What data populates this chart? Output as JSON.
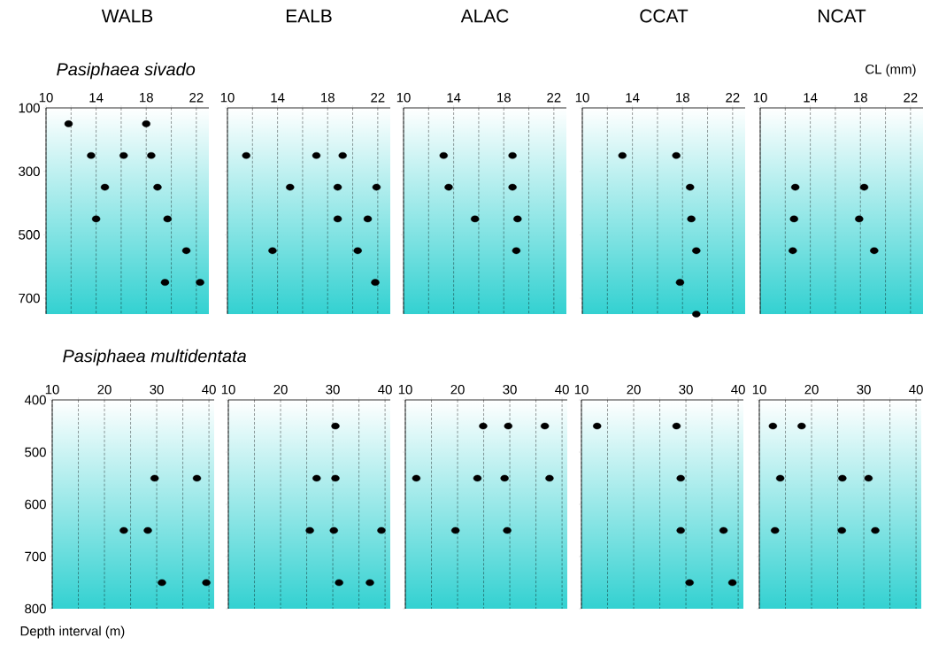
{
  "chart_data": [
    {
      "type": "scatter",
      "title": "WALB",
      "subtitle": "Pasiphaea sivado",
      "color": "#000000",
      "marker": "circle",
      "grid": "x",
      "xlim": [
        10,
        23
      ],
      "ylim": [
        750,
        100
      ],
      "xticks": [
        10,
        {
          "value": 12,
          "label": null
        },
        14,
        {
          "value": 16,
          "label": null
        },
        18,
        {
          "value": 20,
          "label": null
        },
        22
      ],
      "yticks": [
        100,
        300,
        500,
        700
      ],
      "x": [
        11.8,
        18.0,
        13.6,
        16.2,
        18.4,
        14.7,
        18.9,
        14.0,
        19.7,
        21.2,
        19.5,
        22.3
      ],
      "values": [
        150,
        150,
        250,
        250,
        250,
        350,
        350,
        450,
        450,
        550,
        650,
        650
      ]
    },
    {
      "type": "scatter",
      "title": "EALB",
      "color": "#000000",
      "marker": "circle",
      "grid": "x",
      "tick_labels": "x",
      "xlim": [
        10,
        23
      ],
      "ylim": [
        750,
        100
      ],
      "xticks": [
        10,
        {
          "value": 12,
          "label": null
        },
        14,
        {
          "value": 16,
          "label": null
        },
        18,
        {
          "value": 20,
          "label": null
        },
        22
      ],
      "yticks": [
        100,
        300,
        500,
        700
      ],
      "x": [
        11.5,
        17.1,
        19.2,
        15.0,
        18.8,
        21.9,
        18.8,
        21.2,
        13.6,
        20.4,
        21.8
      ],
      "values": [
        250,
        250,
        250,
        350,
        350,
        350,
        450,
        450,
        550,
        550,
        650
      ]
    },
    {
      "type": "scatter",
      "title": "ALAC",
      "color": "#000000",
      "marker": "circle",
      "grid": "x",
      "tick_labels": "x",
      "xlim": [
        10,
        23
      ],
      "ylim": [
        750,
        100
      ],
      "xticks": [
        10,
        {
          "value": 12,
          "label": null
        },
        14,
        {
          "value": 16,
          "label": null
        },
        18,
        {
          "value": 20,
          "label": null
        },
        22
      ],
      "yticks": [
        100,
        300,
        500,
        700
      ],
      "x": [
        13.2,
        18.7,
        13.6,
        18.7,
        15.7,
        19.1,
        19.0
      ],
      "values": [
        250,
        250,
        350,
        350,
        450,
        450,
        550
      ]
    },
    {
      "type": "scatter",
      "title": "CCAT",
      "color": "#000000",
      "marker": "circle",
      "grid": "x",
      "tick_labels": "x",
      "xlim": [
        10,
        23
      ],
      "ylim": [
        750,
        100
      ],
      "xticks": [
        10,
        {
          "value": 12,
          "label": null
        },
        14,
        {
          "value": 16,
          "label": null
        },
        18,
        {
          "value": 20,
          "label": null
        },
        22
      ],
      "yticks": [
        100,
        300,
        500,
        700
      ],
      "x": [
        13.2,
        17.5,
        18.6,
        18.7,
        19.1,
        17.8,
        19.1
      ],
      "values": [
        250,
        250,
        350,
        450,
        550,
        650,
        750
      ]
    },
    {
      "type": "scatter",
      "title": "NCAT",
      "xlabel": "CL (mm)",
      "color": "#000000",
      "marker": "circle",
      "grid": "x",
      "tick_labels": "x",
      "xlim": [
        10,
        23
      ],
      "ylim": [
        750,
        100
      ],
      "xticks": [
        10,
        {
          "value": 12,
          "label": null
        },
        14,
        {
          "value": 16,
          "label": null
        },
        18,
        {
          "value": 20,
          "label": null
        },
        22
      ],
      "yticks": [
        100,
        300,
        500,
        700
      ],
      "x": [
        12.8,
        18.3,
        12.7,
        17.9,
        12.6,
        19.1
      ],
      "values": [
        350,
        350,
        450,
        450,
        550,
        550
      ]
    },
    {
      "type": "scatter",
      "subtitle": "Pasiphaea multidentata",
      "ylabel": "Depth interval (m)",
      "color": "#000000",
      "marker": "circle",
      "grid": "x",
      "xlim": [
        10,
        41
      ],
      "ylim": [
        800,
        400
      ],
      "xticks": [
        10,
        {
          "value": 15,
          "label": null
        },
        20,
        {
          "value": 25,
          "label": null
        },
        30,
        {
          "value": 35,
          "label": null
        },
        40
      ],
      "yticks": [
        400,
        500,
        600,
        700,
        800
      ],
      "x": [
        29.6,
        37.7,
        23.7,
        28.3,
        31.0,
        39.5
      ],
      "values": [
        550,
        550,
        650,
        650,
        750,
        750
      ]
    },
    {
      "type": "scatter",
      "color": "#000000",
      "marker": "circle",
      "grid": "x",
      "tick_labels": "x",
      "xlim": [
        10,
        41
      ],
      "ylim": [
        800,
        400
      ],
      "xticks": [
        10,
        {
          "value": 15,
          "label": null
        },
        20,
        {
          "value": 25,
          "label": null
        },
        30,
        {
          "value": 35,
          "label": null
        },
        40
      ],
      "yticks": [
        400,
        500,
        600,
        700,
        800
      ],
      "x": [
        30.5,
        26.9,
        30.5,
        25.6,
        30.2,
        39.3,
        31.2,
        37.1
      ],
      "values": [
        450,
        550,
        550,
        650,
        650,
        650,
        750,
        750
      ]
    },
    {
      "type": "scatter",
      "color": "#000000",
      "marker": "circle",
      "grid": "x",
      "tick_labels": "x",
      "xlim": [
        10,
        41
      ],
      "ylim": [
        800,
        400
      ],
      "xticks": [
        10,
        {
          "value": 15,
          "label": null
        },
        20,
        {
          "value": 25,
          "label": null
        },
        30,
        {
          "value": 35,
          "label": null
        },
        40
      ],
      "yticks": [
        400,
        500,
        600,
        700,
        800
      ],
      "x": [
        24.9,
        29.7,
        36.7,
        12.1,
        23.8,
        29.0,
        37.6,
        19.6,
        29.5
      ],
      "values": [
        450,
        450,
        450,
        550,
        550,
        550,
        550,
        650,
        650
      ]
    },
    {
      "type": "scatter",
      "color": "#000000",
      "marker": "circle",
      "grid": "x",
      "tick_labels": "x",
      "xlim": [
        10,
        41
      ],
      "ylim": [
        800,
        400
      ],
      "xticks": [
        10,
        {
          "value": 15,
          "label": null
        },
        20,
        {
          "value": 25,
          "label": null
        },
        30,
        {
          "value": 35,
          "label": null
        },
        40
      ],
      "yticks": [
        400,
        500,
        600,
        700,
        800
      ],
      "x": [
        13.0,
        28.2,
        29.0,
        29.0,
        37.2,
        30.7,
        38.9
      ],
      "values": [
        450,
        450,
        550,
        650,
        650,
        750,
        750
      ]
    },
    {
      "type": "scatter",
      "color": "#000000",
      "marker": "circle",
      "grid": "x",
      "tick_labels": "x",
      "xlim": [
        10,
        41
      ],
      "ylim": [
        800,
        400
      ],
      "xticks": [
        10,
        {
          "value": 15,
          "label": null
        },
        20,
        {
          "value": 25,
          "label": null
        },
        30,
        {
          "value": 35,
          "label": null
        },
        40
      ],
      "yticks": [
        400,
        500,
        600,
        700,
        800
      ],
      "x": [
        12.6,
        18.1,
        14.0,
        25.9,
        30.9,
        13.0,
        25.8,
        32.2
      ],
      "values": [
        450,
        450,
        550,
        550,
        550,
        650,
        650,
        650
      ]
    }
  ]
}
